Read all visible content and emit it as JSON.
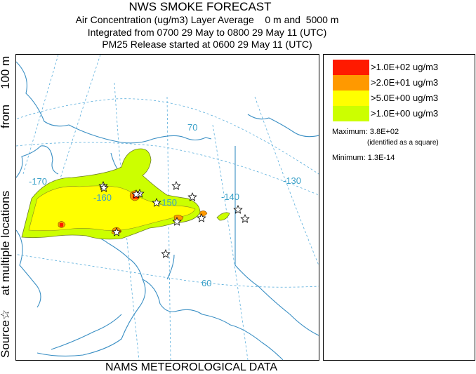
{
  "title": {
    "main": "NWS SMOKE FORECAST",
    "line1": "Air Concentration (ug/m3) Layer Average    0 m and  5000 m",
    "line2": "Integrated from 0700 29 May to 0800 29 May 11 (UTC)",
    "line3": "PM25 Release started at 0600 29 May 11 (UTC)"
  },
  "side_labels": {
    "from": "from",
    "height": "100 m",
    "multiple": "at multiple locations",
    "source": "Source☆"
  },
  "footer": "NAMS METEOROLOGICAL DATA",
  "legend": {
    "items": [
      {
        "label": ">1.0E+02 ug/m3",
        "color": "#ff1a00"
      },
      {
        "label": ">2.0E+01 ug/m3",
        "color": "#ff9900"
      },
      {
        "label": ">5.0E+00 ug/m3",
        "color": "#ffff00"
      },
      {
        "label": ">1.0E+00 ug/m3",
        "color": "#ccff00"
      }
    ],
    "maximum": "Maximum: 3.8E+02",
    "maximum_note": "(identified as a square)",
    "minimum": "Minimum: 1.3E-14"
  },
  "map": {
    "grid_labels": {
      "lat70": "70",
      "lat60": "60",
      "lon170": "-170",
      "lon160": "-160",
      "lon150": "-150",
      "lon140": "-140",
      "lon130": "-130"
    },
    "source_marker_icon": "star-outline-icon",
    "colors": {
      "coast": "#3a8fc4",
      "grid": "#5aaedc"
    }
  }
}
